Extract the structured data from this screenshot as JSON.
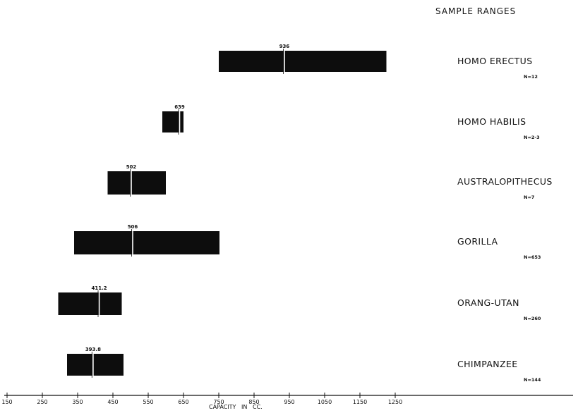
{
  "chart_data": {
    "type": "bar",
    "title": "SAMPLE RANGES",
    "xlabel": "CAPACITY   IN   CC.",
    "ylabel": "",
    "xlim": [
      150,
      1350
    ],
    "x_ticks": [
      "150",
      "250",
      "350",
      "450",
      "550",
      "650",
      "750",
      "850",
      "950",
      "1050",
      "1150",
      "1250"
    ],
    "series": [
      {
        "name": "HOMO ERECTUS",
        "n": "N=12",
        "min": 750,
        "max": 1225,
        "mean": 936,
        "mean_label": "936"
      },
      {
        "name": "HOMO HABILIS",
        "n": "N=2-3",
        "min": 590,
        "max": 650,
        "mean": 639,
        "mean_label": "639"
      },
      {
        "name": "AUSTRALOPITHECUS",
        "n": "N=7",
        "min": 435,
        "max": 600,
        "mean": 502,
        "mean_label": "502"
      },
      {
        "name": "GORILLA",
        "n": "N=653",
        "min": 340,
        "max": 752,
        "mean": 506,
        "mean_label": "506"
      },
      {
        "name": "ORANG-UTAN",
        "n": "N=260",
        "min": 295,
        "max": 475,
        "mean": 411.2,
        "mean_label": "411.2"
      },
      {
        "name": "CHIMPANZEE",
        "n": "N=144",
        "min": 320,
        "max": 480,
        "mean": 393.8,
        "mean_label": "393.8"
      }
    ]
  },
  "colors": {
    "bar": "#0d0d0d",
    "mean_line": "#ffffff",
    "axis": "#111111"
  }
}
